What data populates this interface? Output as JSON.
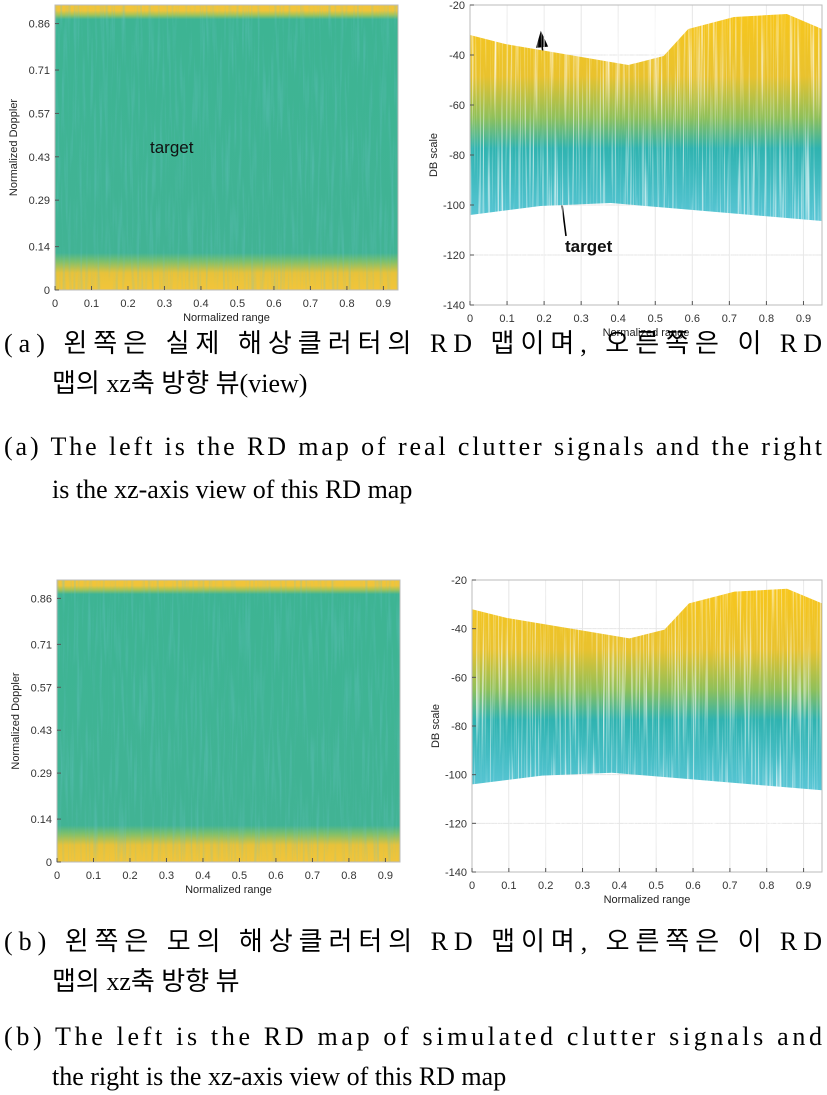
{
  "figures": [
    {
      "left": {
        "ylabel": "Normalized Doppler",
        "xlabel": "Normalized range",
        "xlim": [
          0,
          0.94
        ],
        "ylim": [
          0,
          0.92
        ],
        "xticks": [
          0,
          0.1,
          0.2,
          0.3,
          0.4,
          0.5,
          0.6,
          0.7,
          0.8,
          0.9
        ],
        "yticks": [
          0,
          0.14,
          0.29,
          0.43,
          0.57,
          0.71,
          0.86
        ],
        "annotation": "target"
      },
      "right": {
        "ylabel": "DB scale",
        "xlabel": "Normalized range",
        "xlim": [
          0,
          0.95
        ],
        "ylim": [
          -140,
          -20
        ],
        "xticks": [
          0,
          0.1,
          0.2,
          0.3,
          0.4,
          0.5,
          0.6,
          0.7,
          0.8,
          0.9
        ],
        "yticks": [
          -140,
          -120,
          -100,
          -80,
          -60,
          -40,
          -20
        ],
        "annotation": "target"
      },
      "caption_ko": [
        "(a) 왼쪽은 실제 해상클러터의 RD 맵이며, 오른쪽은 이 RD",
        "맵의 xz축 방향 뷰(view)"
      ],
      "caption_en": [
        "(a) The left is the RD map of real clutter signals and the right",
        "is the xz-axis view of this RD map"
      ]
    },
    {
      "left": {
        "ylabel": "Normalized Doppler",
        "xlabel": "Normalized range",
        "xlim": [
          0,
          0.94
        ],
        "ylim": [
          0,
          0.92
        ],
        "xticks": [
          0,
          0.1,
          0.2,
          0.3,
          0.4,
          0.5,
          0.6,
          0.7,
          0.8,
          0.9
        ],
        "yticks": [
          0,
          0.14,
          0.29,
          0.43,
          0.57,
          0.71,
          0.86
        ]
      },
      "right": {
        "ylabel": "DB scale",
        "xlabel": "Normalized range",
        "xlim": [
          0,
          0.95
        ],
        "ylim": [
          -140,
          -20
        ],
        "xticks": [
          0,
          0.1,
          0.2,
          0.3,
          0.4,
          0.5,
          0.6,
          0.7,
          0.8,
          0.9
        ],
        "yticks": [
          -140,
          -120,
          -100,
          -80,
          -60,
          -40,
          -20
        ]
      },
      "caption_ko": [
        "(b) 왼쪽은 모의 해상클러터의 RD 맵이며, 오른쪽은 이 RD",
        "맵의 xz축 방향 뷰"
      ],
      "caption_en": [
        "(b) The left is the RD map of simulated clutter signals and",
        "the right is the xz-axis view of this RD map"
      ]
    }
  ]
}
